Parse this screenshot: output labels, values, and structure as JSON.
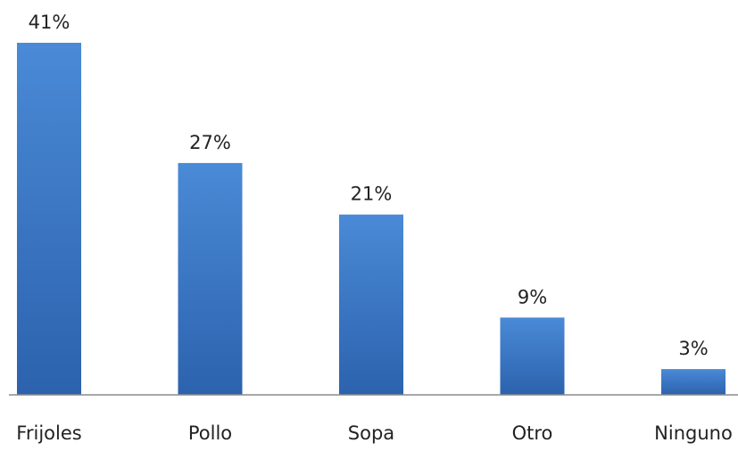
{
  "chart_data": {
    "type": "bar",
    "categories": [
      "Frijoles",
      "Pollo",
      "Sopa",
      "Otro",
      "Ninguno"
    ],
    "values": [
      41,
      27,
      21,
      9,
      3
    ],
    "value_labels": [
      "41%",
      "27%",
      "21%",
      "9%",
      "3%"
    ],
    "unit": "%",
    "title": "",
    "xlabel": "",
    "ylabel": "",
    "ylim": [
      0,
      41
    ],
    "grid": false,
    "legend": "none",
    "colors": {
      "bar_top": "#4a8ad6",
      "bar_bottom": "#2c62ae",
      "axis": "#8c8c8c",
      "text": "#222222"
    }
  }
}
